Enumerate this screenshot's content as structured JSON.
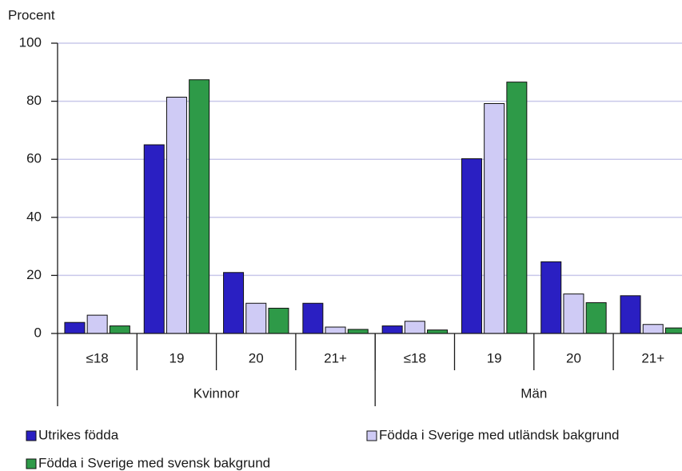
{
  "chart_data": {
    "type": "bar",
    "ylabel": "Procent",
    "groups": [
      "Kvinnor",
      "Män"
    ],
    "categories": [
      "≤18",
      "19",
      "20",
      "21+",
      "≤18",
      "19",
      "20",
      "21+"
    ],
    "series": [
      {
        "name": "Utrikes födda",
        "color": "#2a1fc2",
        "values": [
          3.8,
          65,
          21,
          10.4,
          2.6,
          60.2,
          24.7,
          13
        ]
      },
      {
        "name": "Födda i Sverige med utländsk bakgrund",
        "color": "#cfcbf5",
        "values": [
          6.3,
          81.4,
          10.4,
          2.2,
          4.2,
          79.2,
          13.6,
          3.1
        ]
      },
      {
        "name": "Födda i Sverige med svensk bakgrund",
        "color": "#2e9a48",
        "values": [
          2.6,
          87.4,
          8.7,
          1.4,
          1.2,
          86.6,
          10.6,
          1.9
        ]
      }
    ],
    "ylim": [
      0,
      100
    ],
    "yticks": [
      0,
      20,
      40,
      60,
      80,
      100
    ],
    "grid": true
  }
}
